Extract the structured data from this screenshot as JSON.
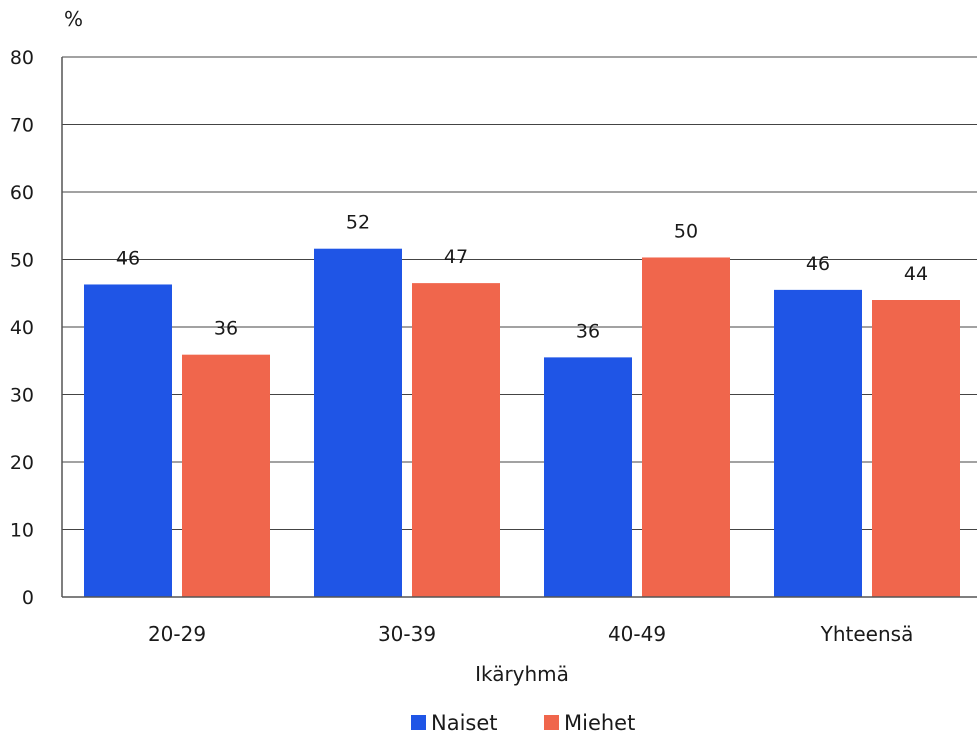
{
  "chart_data": {
    "type": "bar",
    "ylabel": "%",
    "xlabel": "Ikäryhmä",
    "ylim": [
      0,
      80
    ],
    "yticks": [
      0,
      10,
      20,
      30,
      40,
      50,
      60,
      70,
      80
    ],
    "grid": true,
    "legend_position": "bottom",
    "categories": [
      "20-29",
      "30-39",
      "40-49",
      "Yhteensä"
    ],
    "series": [
      {
        "name": "Naiset",
        "color": "#1f55e6",
        "values": [
          46.3,
          51.6,
          35.5,
          45.5
        ],
        "labels": [
          "46",
          "52",
          "36",
          "46"
        ]
      },
      {
        "name": "Miehet",
        "color": "#f0664c",
        "values": [
          35.9,
          46.5,
          50.3,
          44.0
        ],
        "labels": [
          "36",
          "47",
          "50",
          "44"
        ]
      }
    ]
  }
}
